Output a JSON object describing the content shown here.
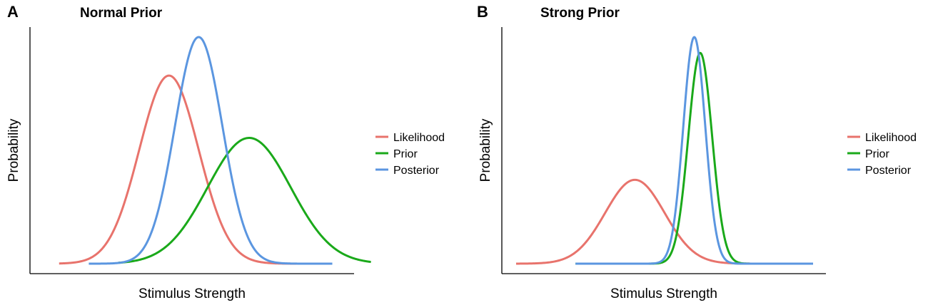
{
  "chart_data": [
    {
      "type": "line",
      "panel_label": "A",
      "title": "Normal Prior",
      "xlabel": "Stimulus Strength",
      "ylabel": "Probability",
      "xlim": [
        0,
        100
      ],
      "ylim": [
        0,
        1.0
      ],
      "grid": false,
      "legend_position": "right",
      "series": [
        {
          "name": "Likelihood",
          "color": "#e8736c",
          "mean": 42,
          "sd": 10,
          "peak": 0.83,
          "x_range": [
            5,
            85
          ]
        },
        {
          "name": "Prior",
          "color": "#1aa91a",
          "mean": 69,
          "sd": 14,
          "peak": 0.555,
          "x_range": [
            25,
            110
          ]
        },
        {
          "name": "Posterior",
          "color": "#5b96e0",
          "mean": 52,
          "sd": 8,
          "peak": 1.0,
          "x_range": [
            15,
            97
          ]
        }
      ]
    },
    {
      "type": "line",
      "panel_label": "B",
      "title": "Strong Prior",
      "xlabel": "Stimulus Strength",
      "ylabel": "Probability",
      "xlim": [
        0,
        100
      ],
      "ylim": [
        0,
        1.0
      ],
      "grid": false,
      "legend_position": "right",
      "series": [
        {
          "name": "Likelihood",
          "color": "#e8736c",
          "mean": 40,
          "sd": 10,
          "peak": 0.37,
          "x_range": [
            0,
            100
          ]
        },
        {
          "name": "Prior",
          "color": "#1aa91a",
          "mean": 62,
          "sd": 4,
          "peak": 0.93,
          "x_range": [
            20,
            100
          ]
        },
        {
          "name": "Posterior",
          "color": "#5b96e0",
          "mean": 60,
          "sd": 3.7,
          "peak": 1.0,
          "x_range": [
            20,
            100
          ]
        }
      ]
    }
  ]
}
